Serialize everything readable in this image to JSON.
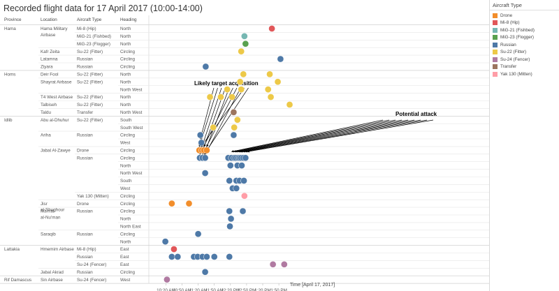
{
  "chart_data": {
    "type": "scatter",
    "title": "Recorded flight data for 17 April 2017 (10:00-14:00)",
    "xlabel": "Time [April 17, 2017]",
    "xlim": [
      "10:00",
      "14:00"
    ],
    "x_ticks": [
      "10:20 AM",
      "10:50 AM",
      "11:20 AM",
      "11:50 AM",
      "12:20 PM",
      "12:50 PM",
      "1:20 PM",
      "1:50 PM"
    ],
    "columns": [
      "Province",
      "Location",
      "Aircraft Type",
      "Heading"
    ],
    "rows": [
      {
        "province": "Hama",
        "location": "Hama Military Airbase",
        "aircraft": "Mi-8 (Hip)",
        "heading": "North"
      },
      {
        "province": "",
        "location": "",
        "aircraft": "MiG-21 (Fishbed)",
        "heading": "North"
      },
      {
        "province": "",
        "location": "",
        "aircraft": "MiG-23 (Flogger)",
        "heading": "North"
      },
      {
        "province": "",
        "location": "Kafr Zeita",
        "aircraft": "Su-22 (Fitter)",
        "heading": "Circling"
      },
      {
        "province": "",
        "location": "Latamna",
        "aircraft": "Russian",
        "heading": "Circling"
      },
      {
        "province": "",
        "location": "Ziyara",
        "aircraft": "Russian",
        "heading": "Circling"
      },
      {
        "province": "Homs",
        "location": "Deir Fool",
        "aircraft": "Su-22 (Fitter)",
        "heading": "North"
      },
      {
        "province": "",
        "location": "Shayrat Airbase",
        "aircraft": "Su-22 (Fitter)",
        "heading": "North"
      },
      {
        "province": "",
        "location": "",
        "aircraft": "",
        "heading": "North West"
      },
      {
        "province": "",
        "location": "T4 West Airbase",
        "aircraft": "Su-22 (Fitter)",
        "heading": "North"
      },
      {
        "province": "",
        "location": "Talbiseh",
        "aircraft": "Su-22 (Fitter)",
        "heading": "North"
      },
      {
        "province": "",
        "location": "Taldu",
        "aircraft": "Transfer",
        "heading": "North West"
      },
      {
        "province": "Idlib",
        "location": "Abu al-Dhuhur",
        "aircraft": "Su-22 (Fitter)",
        "heading": "South"
      },
      {
        "province": "",
        "location": "",
        "aircraft": "",
        "heading": "South West"
      },
      {
        "province": "",
        "location": "Ariha",
        "aircraft": "Russian",
        "heading": "Circling"
      },
      {
        "province": "",
        "location": "",
        "aircraft": "",
        "heading": "West"
      },
      {
        "province": "",
        "location": "Jabal Al-Zawye",
        "aircraft": "Drone",
        "heading": "Circling"
      },
      {
        "province": "",
        "location": "",
        "aircraft": "Russian",
        "heading": "Circling"
      },
      {
        "province": "",
        "location": "",
        "aircraft": "",
        "heading": "North"
      },
      {
        "province": "",
        "location": "",
        "aircraft": "",
        "heading": "North West"
      },
      {
        "province": "",
        "location": "",
        "aircraft": "",
        "heading": "South"
      },
      {
        "province": "",
        "location": "",
        "aircraft": "",
        "heading": "West"
      },
      {
        "province": "",
        "location": "",
        "aircraft": "Yak 130 (Mitten)",
        "heading": "Circling"
      },
      {
        "province": "",
        "location": "Jisr al-Shughour",
        "aircraft": "Drone",
        "heading": "Circling"
      },
      {
        "province": "",
        "location": "Ma'rrat al-Nu'man",
        "aircraft": "Russian",
        "heading": "Circling"
      },
      {
        "province": "",
        "location": "",
        "aircraft": "",
        "heading": "North"
      },
      {
        "province": "",
        "location": "",
        "aircraft": "",
        "heading": "North East"
      },
      {
        "province": "",
        "location": "Saraqib",
        "aircraft": "Russian",
        "heading": "Circling"
      },
      {
        "province": "",
        "location": "",
        "aircraft": "",
        "heading": "North"
      },
      {
        "province": "Lattakia",
        "location": "Hmemim Airbase",
        "aircraft": "Mi-8 (Hip)",
        "heading": "East"
      },
      {
        "province": "",
        "location": "",
        "aircraft": "Russian",
        "heading": "East"
      },
      {
        "province": "",
        "location": "",
        "aircraft": "Su-24 (Fencer)",
        "heading": "East"
      },
      {
        "province": "",
        "location": "Jabal Akrad",
        "aircraft": "Russian",
        "heading": "Circling"
      },
      {
        "province": "Rif Damascus",
        "location": "Sin Airbase",
        "aircraft": "Su-24 (Fencer)",
        "heading": "West"
      }
    ],
    "legend_title": "Aircraft Type",
    "legend": [
      {
        "name": "Drone",
        "color": "#F28E2B"
      },
      {
        "name": "Mi-8 (Hip)",
        "color": "#E15759"
      },
      {
        "name": "MiG-21 (Fishbed)",
        "color": "#76B7B2"
      },
      {
        "name": "MiG-23 (Flogger)",
        "color": "#59A14F"
      },
      {
        "name": "Russian",
        "color": "#4E79A7"
      },
      {
        "name": "Su-22 (Fitter)",
        "color": "#EDC948"
      },
      {
        "name": "Su-24 (Fencer)",
        "color": "#B07AA1"
      },
      {
        "name": "Transfer",
        "color": "#9C755F"
      },
      {
        "name": "Yak 130 (Mitten)",
        "color": "#FF9DA7"
      }
    ],
    "points": [
      {
        "row": 0,
        "time": "13:37",
        "type": "Mi-8 (Hip)"
      },
      {
        "row": 1,
        "time": "12:46",
        "type": "MiG-21 (Fishbed)"
      },
      {
        "row": 2,
        "time": "12:48",
        "type": "MiG-23 (Flogger)"
      },
      {
        "row": 3,
        "time": "12:40",
        "type": "Su-22 (Fitter)"
      },
      {
        "row": 4,
        "time": "13:53",
        "type": "Russian"
      },
      {
        "row": 5,
        "time": "11:34",
        "type": "Russian"
      },
      {
        "row": 6,
        "time": "12:44",
        "type": "Su-22 (Fitter)"
      },
      {
        "row": 6,
        "time": "13:33",
        "type": "Su-22 (Fitter)"
      },
      {
        "row": 7,
        "time": "12:38",
        "type": "Su-22 (Fitter)"
      },
      {
        "row": 7,
        "time": "13:48",
        "type": "Su-22 (Fitter)"
      },
      {
        "row": 8,
        "time": "12:14",
        "type": "Su-22 (Fitter)"
      },
      {
        "row": 8,
        "time": "12:40",
        "type": "Su-22 (Fitter)"
      },
      {
        "row": 8,
        "time": "13:30",
        "type": "Su-22 (Fitter)"
      },
      {
        "row": 9,
        "time": "11:42",
        "type": "Su-22 (Fitter)"
      },
      {
        "row": 9,
        "time": "12:02",
        "type": "Su-22 (Fitter)"
      },
      {
        "row": 9,
        "time": "12:23",
        "type": "Su-22 (Fitter)"
      },
      {
        "row": 9,
        "time": "13:35",
        "type": "Su-22 (Fitter)"
      },
      {
        "row": 10,
        "time": "14:10",
        "type": "Su-22 (Fitter)"
      },
      {
        "row": 11,
        "time": "12:26",
        "type": "Transfer"
      },
      {
        "row": 12,
        "time": "12:33",
        "type": "Su-22 (Fitter)"
      },
      {
        "row": 13,
        "time": "11:48",
        "type": "Su-22 (Fitter)"
      },
      {
        "row": 13,
        "time": "12:27",
        "type": "Su-22 (Fitter)"
      },
      {
        "row": 14,
        "time": "11:24",
        "type": "Russian"
      },
      {
        "row": 14,
        "time": "12:26",
        "type": "Russian"
      },
      {
        "row": 15,
        "time": "11:26",
        "type": "Russian"
      },
      {
        "row": 16,
        "time": "11:22",
        "type": "Drone"
      },
      {
        "row": 16,
        "time": "11:27",
        "type": "Drone"
      },
      {
        "row": 16,
        "time": "11:31",
        "type": "Drone"
      },
      {
        "row": 16,
        "time": "11:36",
        "type": "Drone"
      },
      {
        "row": 17,
        "time": "11:23",
        "type": "Russian"
      },
      {
        "row": 17,
        "time": "11:28",
        "type": "Russian"
      },
      {
        "row": 17,
        "time": "11:33",
        "type": "Russian"
      },
      {
        "row": 17,
        "time": "12:16",
        "type": "Russian"
      },
      {
        "row": 17,
        "time": "12:22",
        "type": "Russian"
      },
      {
        "row": 17,
        "time": "12:27",
        "type": "Russian"
      },
      {
        "row": 17,
        "time": "12:30",
        "type": "Russian"
      },
      {
        "row": 17,
        "time": "12:34",
        "type": "Russian"
      },
      {
        "row": 17,
        "time": "12:37",
        "type": "Russian"
      },
      {
        "row": 17,
        "time": "12:40",
        "type": "Russian"
      },
      {
        "row": 17,
        "time": "12:44",
        "type": "Russian"
      },
      {
        "row": 17,
        "time": "12:48",
        "type": "Russian"
      },
      {
        "row": 18,
        "time": "12:20",
        "type": "Russian"
      },
      {
        "row": 18,
        "time": "12:33",
        "type": "Russian"
      },
      {
        "row": 18,
        "time": "12:41",
        "type": "Russian"
      },
      {
        "row": 19,
        "time": "11:33",
        "type": "Russian"
      },
      {
        "row": 20,
        "time": "12:18",
        "type": "Russian"
      },
      {
        "row": 20,
        "time": "12:31",
        "type": "Russian"
      },
      {
        "row": 20,
        "time": "12:37",
        "type": "Russian"
      },
      {
        "row": 20,
        "time": "12:45",
        "type": "Russian"
      },
      {
        "row": 21,
        "time": "12:24",
        "type": "Russian"
      },
      {
        "row": 21,
        "time": "12:31",
        "type": "Russian"
      },
      {
        "row": 22,
        "time": "12:46",
        "type": "Yak 130 (Mitten)"
      },
      {
        "row": 23,
        "time": "10:31",
        "type": "Drone"
      },
      {
        "row": 23,
        "time": "11:03",
        "type": "Drone"
      },
      {
        "row": 24,
        "time": "12:18",
        "type": "Russian"
      },
      {
        "row": 24,
        "time": "12:43",
        "type": "Russian"
      },
      {
        "row": 25,
        "time": "12:21",
        "type": "Russian"
      },
      {
        "row": 26,
        "time": "12:19",
        "type": "Russian"
      },
      {
        "row": 27,
        "time": "11:20",
        "type": "Russian"
      },
      {
        "row": 28,
        "time": "10:19",
        "type": "Russian"
      },
      {
        "row": 29,
        "time": "10:35",
        "type": "Mi-8 (Hip)"
      },
      {
        "row": 30,
        "time": "10:31",
        "type": "Russian"
      },
      {
        "row": 30,
        "time": "10:42",
        "type": "Russian"
      },
      {
        "row": 30,
        "time": "11:12",
        "type": "Russian"
      },
      {
        "row": 30,
        "time": "11:19",
        "type": "Russian"
      },
      {
        "row": 30,
        "time": "11:28",
        "type": "Russian"
      },
      {
        "row": 30,
        "time": "11:36",
        "type": "Russian"
      },
      {
        "row": 30,
        "time": "11:50",
        "type": "Russian"
      },
      {
        "row": 30,
        "time": "12:18",
        "type": "Russian"
      },
      {
        "row": 31,
        "time": "13:39",
        "type": "Su-24 (Fencer)"
      },
      {
        "row": 31,
        "time": "14:00",
        "type": "Su-24 (Fencer)"
      },
      {
        "row": 32,
        "time": "11:33",
        "type": "Russian"
      },
      {
        "row": 33,
        "time": "10:22",
        "type": "Su-24 (Fencer)"
      }
    ],
    "annotations": [
      {
        "text": "Likely target acquisition",
        "targets": [
          {
            "row": 15,
            "time": "11:24"
          },
          {
            "row": 16,
            "time": "11:22"
          },
          {
            "row": 16,
            "time": "11:27"
          },
          {
            "row": 16,
            "time": "11:31"
          },
          {
            "row": 16,
            "time": "11:36"
          },
          {
            "row": 17,
            "time": "11:23"
          },
          {
            "row": 17,
            "time": "11:28"
          },
          {
            "row": 17,
            "time": "11:33"
          },
          {
            "row": 16,
            "time": "11:25"
          },
          {
            "row": 17,
            "time": "11:31"
          }
        ]
      },
      {
        "text": "Potential attack",
        "targets": [
          {
            "row": 16,
            "time": "12:22"
          },
          {
            "row": 16,
            "time": "12:26"
          },
          {
            "row": 16,
            "time": "12:29"
          },
          {
            "row": 16,
            "time": "12:33"
          },
          {
            "row": 16,
            "time": "12:36"
          },
          {
            "row": 16,
            "time": "12:39"
          },
          {
            "row": 16,
            "time": "12:43"
          },
          {
            "row": 16,
            "time": "12:47"
          },
          {
            "row": 16,
            "time": "12:51"
          }
        ]
      }
    ],
    "grid": false,
    "legend_position": "right"
  }
}
